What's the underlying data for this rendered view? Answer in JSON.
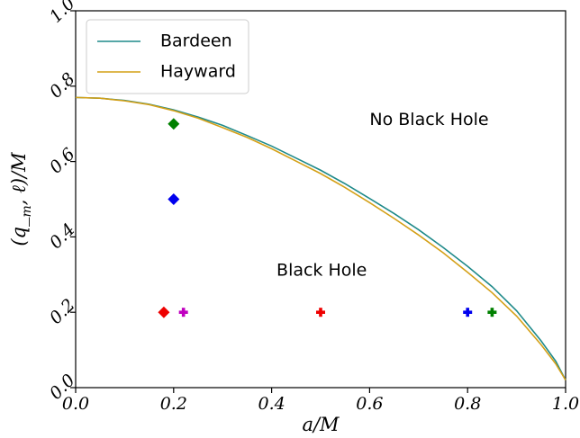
{
  "chart_data": {
    "type": "line",
    "xlabel": "a/M",
    "ylabel": "(q_m, ℓ)/M",
    "xlim": [
      0,
      1
    ],
    "ylim": [
      0,
      1
    ],
    "xticks": [
      "0.0",
      "0.2",
      "0.4",
      "0.6",
      "0.8",
      "1.0"
    ],
    "yticks": [
      "0.0",
      "0.2",
      "0.4",
      "0.6",
      "0.8",
      "1.0"
    ],
    "grid": false,
    "legend_position": "top-left",
    "series": [
      {
        "name": "Bardeen",
        "color": "#1f8a8a",
        "x": [
          0,
          0.05,
          0.1,
          0.15,
          0.2,
          0.25,
          0.3,
          0.35,
          0.4,
          0.45,
          0.5,
          0.55,
          0.6,
          0.65,
          0.7,
          0.75,
          0.8,
          0.85,
          0.9,
          0.95,
          0.98,
          1.0
        ],
        "y": [
          0.77,
          0.768,
          0.762,
          0.752,
          0.737,
          0.718,
          0.696,
          0.669,
          0.641,
          0.609,
          0.577,
          0.541,
          0.502,
          0.462,
          0.419,
          0.372,
          0.322,
          0.268,
          0.204,
          0.124,
          0.07,
          0.02
        ]
      },
      {
        "name": "Hayward",
        "color": "#d4a017",
        "x": [
          0,
          0.05,
          0.1,
          0.15,
          0.2,
          0.25,
          0.3,
          0.35,
          0.4,
          0.45,
          0.5,
          0.55,
          0.6,
          0.65,
          0.7,
          0.75,
          0.8,
          0.85,
          0.9,
          0.95,
          0.98,
          1.0
        ],
        "y": [
          0.77,
          0.768,
          0.761,
          0.751,
          0.735,
          0.715,
          0.69,
          0.664,
          0.634,
          0.601,
          0.568,
          0.531,
          0.491,
          0.449,
          0.405,
          0.358,
          0.306,
          0.252,
          0.19,
          0.114,
          0.063,
          0.02
        ]
      }
    ],
    "markers": [
      {
        "shape": "diamond",
        "color": "#008000",
        "x": 0.2,
        "y": 0.7
      },
      {
        "shape": "diamond",
        "color": "#0000ee",
        "x": 0.2,
        "y": 0.5
      },
      {
        "shape": "diamond",
        "color": "#ee0000",
        "x": 0.18,
        "y": 0.2
      },
      {
        "shape": "plus",
        "color": "#c000c0",
        "x": 0.22,
        "y": 0.2
      },
      {
        "shape": "plus",
        "color": "#ee0000",
        "x": 0.5,
        "y": 0.2
      },
      {
        "shape": "plus",
        "color": "#0000ee",
        "x": 0.8,
        "y": 0.2
      },
      {
        "shape": "plus",
        "color": "#008000",
        "x": 0.85,
        "y": 0.2
      }
    ],
    "annotations": [
      {
        "text": "No Black Hole",
        "x": 0.6,
        "y": 0.71
      },
      {
        "text": "Black Hole",
        "x": 0.41,
        "y": 0.31
      }
    ]
  }
}
